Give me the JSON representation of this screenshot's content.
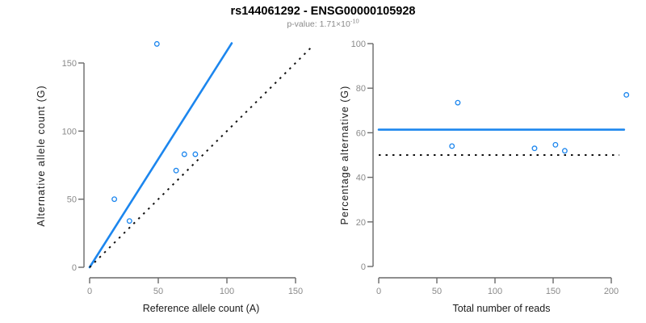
{
  "figure": {
    "title": "rs144061292 - ENSG00000105928",
    "subtitle_prefix": "p-value: 1.71×10",
    "subtitle_exponent": "-10"
  },
  "colors": {
    "accent_blue": "#1C86EE",
    "reference_black": "#111111",
    "axis_line": "#696969",
    "tick_label": "#8a8a8a",
    "axis_title": "#1a1a1a",
    "title": "#000000",
    "subtitle": "#8a8a8a",
    "background": "#ffffff"
  },
  "chart_data": [
    {
      "type": "scatter",
      "name": "allele-counts-panel",
      "xlabel": "Reference allele count (A)",
      "ylabel": "Alternative allele count (G)",
      "xlim": [
        0,
        163
      ],
      "ylim": [
        0,
        165
      ],
      "xticks": [
        0,
        50,
        100,
        150
      ],
      "yticks": [
        0,
        50,
        100,
        150
      ],
      "grid": false,
      "legend": null,
      "marker": "open-circle",
      "points": [
        [
          18,
          50
        ],
        [
          29,
          34
        ],
        [
          49,
          164
        ],
        [
          63,
          71
        ],
        [
          69,
          83
        ],
        [
          77,
          83
        ]
      ],
      "lines": [
        {
          "name": "fitted-line",
          "style": "solid",
          "color": "#1C86EE",
          "x1": 0,
          "y1": 0,
          "x2": 103.5,
          "y2": 164.5
        },
        {
          "name": "identity-line",
          "style": "dotted",
          "color": "#111111",
          "x1": 0,
          "y1": 0,
          "x2": 163,
          "y2": 163
        }
      ]
    },
    {
      "type": "scatter",
      "name": "percentage-panel",
      "xlabel": "Total number of reads",
      "ylabel": "Percentage alternative (G)",
      "xlim": [
        0,
        213
      ],
      "ylim": [
        0,
        100
      ],
      "xticks": [
        0,
        50,
        100,
        150,
        200
      ],
      "yticks": [
        0,
        20,
        40,
        60,
        80,
        100
      ],
      "grid": false,
      "legend": null,
      "marker": "open-circle",
      "points": [
        [
          63,
          54
        ],
        [
          68,
          73.5
        ],
        [
          134,
          53
        ],
        [
          152,
          54.6
        ],
        [
          160,
          51.9
        ],
        [
          213,
          77
        ]
      ],
      "lines": [
        {
          "name": "fitted-percentage-line",
          "style": "solid",
          "color": "#1C86EE",
          "x1": 0,
          "y1": 61.4,
          "x2": 211,
          "y2": 61.4
        },
        {
          "name": "null-percentage-line",
          "style": "dotted",
          "color": "#111111",
          "x1": 0,
          "y1": 50,
          "x2": 207,
          "y2": 50
        }
      ]
    }
  ]
}
